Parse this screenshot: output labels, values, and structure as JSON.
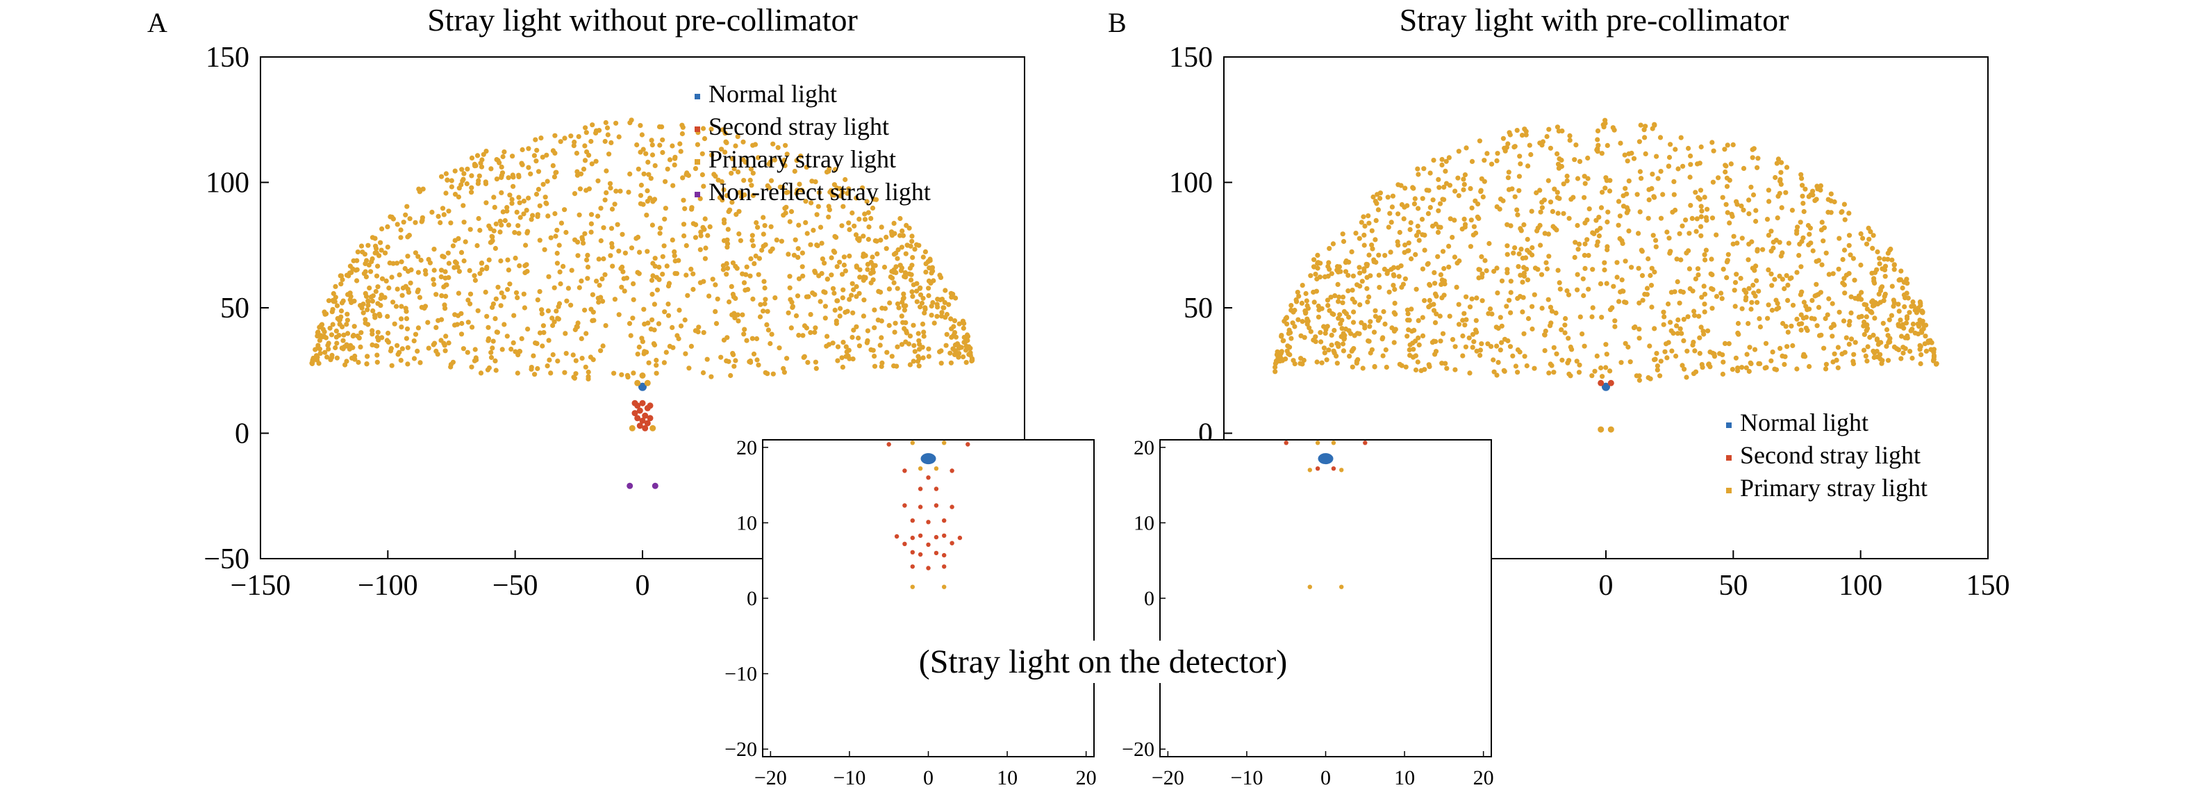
{
  "figure_caption": "(Stray light on the detector)",
  "colors": {
    "normal": "#2f6eb5",
    "second": "#d24a2b",
    "primary": "#e0a42f",
    "nonreflect": "#7b2fa0",
    "axis": "#000000"
  },
  "chart_data": [
    {
      "id": "A",
      "panel_label": "A",
      "type": "scatter",
      "title": "Stray light without pre-collimator",
      "xlabel": "",
      "ylabel": "",
      "xlim": [
        -150,
        150
      ],
      "ylim": [
        -50,
        150
      ],
      "x_ticks": [
        -150,
        -100,
        -50,
        0
      ],
      "y_ticks": [
        150,
        100,
        50,
        0,
        -50
      ],
      "grid": false,
      "legend_position": "top-right",
      "series": [
        {
          "name": "Normal light",
          "color_key": "normal",
          "points": [
            [
              0,
              18.5
            ]
          ]
        },
        {
          "name": "Second stray light",
          "color_key": "second",
          "points": [
            [
              -3,
              8
            ],
            [
              -2,
              6
            ],
            [
              -1,
              9
            ],
            [
              0,
              5
            ],
            [
              1,
              7
            ],
            [
              2,
              10
            ],
            [
              3,
              6
            ],
            [
              -2,
              11
            ],
            [
              2,
              4
            ],
            [
              0,
              12
            ],
            [
              -1,
              3
            ],
            [
              1,
              2
            ],
            [
              -3,
              12
            ],
            [
              3,
              11
            ]
          ]
        },
        {
          "name": "Primary stray light",
          "color_key": "primary",
          "points": [
            [
              -4,
              2
            ],
            [
              4,
              2
            ],
            [
              -2,
              20
            ],
            [
              2,
              20
            ],
            [
              0,
              23
            ]
          ]
        },
        {
          "name": "Non-reflect stray light",
          "color_key": "nonreflect",
          "points": [
            [
              -5,
              -21
            ],
            [
              5,
              -21
            ]
          ]
        }
      ]
    },
    {
      "id": "B",
      "panel_label": "B",
      "type": "scatter",
      "title": "Stray light with pre-collimator",
      "xlabel": "",
      "ylabel": "",
      "xlim": [
        -150,
        150
      ],
      "ylim": [
        -50,
        150
      ],
      "x_ticks": [
        0,
        50,
        100,
        150
      ],
      "y_ticks": [
        150,
        100,
        50,
        0
      ],
      "grid": false,
      "legend_position": "bottom-right",
      "series": [
        {
          "name": "Normal light",
          "color_key": "normal",
          "points": [
            [
              0,
              18.5
            ]
          ]
        },
        {
          "name": "Second stray light",
          "color_key": "second",
          "points": [
            [
              -2,
              20
            ],
            [
              2,
              20
            ]
          ]
        },
        {
          "name": "Primary stray light",
          "color_key": "primary",
          "points": [
            [
              -2,
              1.5
            ],
            [
              2,
              1.5
            ]
          ]
        }
      ]
    },
    {
      "id": "A-inset",
      "type": "scatter",
      "title": "",
      "xlim": [
        -21,
        21
      ],
      "ylim": [
        -21,
        21
      ],
      "x_ticks": [
        -20,
        -10,
        0,
        10,
        20
      ],
      "y_ticks": [
        20,
        10,
        0,
        -10,
        -20
      ],
      "grid": false,
      "series": [
        {
          "name": "Normal light",
          "color_key": "normal",
          "points": [
            [
              0,
              18.5
            ]
          ]
        },
        {
          "name": "Second stray light",
          "color_key": "second",
          "points": [
            [
              -3,
              12.3
            ],
            [
              -1,
              12.1
            ],
            [
              1,
              12.3
            ],
            [
              3,
              12.1
            ],
            [
              -2,
              10.3
            ],
            [
              0,
              10.1
            ],
            [
              2,
              10.3
            ],
            [
              -4,
              8.2
            ],
            [
              -2,
              8.0
            ],
            [
              -1,
              8.3
            ],
            [
              1,
              8.1
            ],
            [
              2,
              8.3
            ],
            [
              4,
              8.0
            ],
            [
              -3,
              7.2
            ],
            [
              0,
              7.1
            ],
            [
              3,
              7.3
            ],
            [
              -2,
              6.1
            ],
            [
              -1,
              5.8
            ],
            [
              1,
              6.0
            ],
            [
              2,
              5.7
            ],
            [
              -2,
              4.2
            ],
            [
              0,
              4.0
            ],
            [
              2,
              4.2
            ],
            [
              -1,
              14.5
            ],
            [
              1,
              14.5
            ],
            [
              0,
              16.0
            ],
            [
              -3,
              16.9
            ],
            [
              3,
              16.9
            ],
            [
              -5,
              20.4
            ],
            [
              5,
              20.4
            ]
          ]
        },
        {
          "name": "Primary stray light",
          "color_key": "primary",
          "points": [
            [
              -2,
              1.5
            ],
            [
              2,
              1.5
            ],
            [
              -2,
              20.6
            ],
            [
              2,
              20.6
            ],
            [
              -1,
              17.2
            ],
            [
              1,
              17.2
            ]
          ]
        }
      ]
    },
    {
      "id": "B-inset",
      "type": "scatter",
      "title": "",
      "xlim": [
        -21,
        21
      ],
      "ylim": [
        -21,
        21
      ],
      "x_ticks": [
        -20,
        -10,
        0,
        10,
        20
      ],
      "y_ticks": [
        20,
        10,
        0,
        -10,
        -20
      ],
      "grid": false,
      "series": [
        {
          "name": "Normal light",
          "color_key": "normal",
          "points": [
            [
              0,
              18.5
            ]
          ]
        },
        {
          "name": "Second stray light",
          "color_key": "second",
          "points": [
            [
              -5,
              20.6
            ],
            [
              5,
              20.6
            ],
            [
              -1,
              17.2
            ],
            [
              1,
              17.2
            ]
          ]
        },
        {
          "name": "Primary stray light",
          "color_key": "primary",
          "points": [
            [
              -2,
              1.5
            ],
            [
              2,
              1.5
            ],
            [
              -2,
              17.0
            ],
            [
              2,
              17.0
            ],
            [
              -1,
              20.6
            ],
            [
              1,
              20.6
            ]
          ]
        }
      ]
    }
  ]
}
